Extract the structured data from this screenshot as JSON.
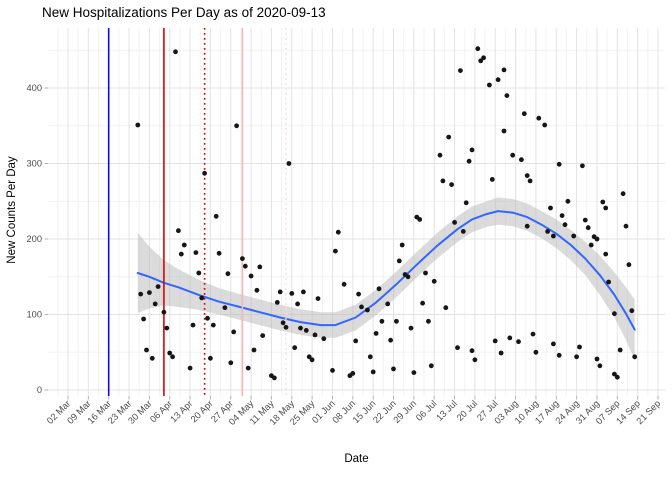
{
  "title": "New Hospitalizations Per Day as of 2020-09-13",
  "axes": {
    "x_label": "Date",
    "y_label": "New Counts Per Day",
    "x_ticks": [
      "02 Mar",
      "09 Mar",
      "16 Mar",
      "23 Mar",
      "30 Mar",
      "06 Apr",
      "13 Apr",
      "20 Apr",
      "27 Apr",
      "04 May",
      "11 May",
      "18 May",
      "25 May",
      "01 Jun",
      "08 Jun",
      "15 Jun",
      "22 Jun",
      "29 Jun",
      "06 Jul",
      "13 Jul",
      "20 Jul",
      "27 Jul",
      "03 Aug",
      "10 Aug",
      "17 Aug",
      "24 Aug",
      "31 Aug",
      "07 Sep",
      "14 Sep",
      "21 Sep"
    ],
    "y_ticks": [
      "0",
      "100",
      "200",
      "300",
      "400"
    ],
    "y_tick_values": [
      0,
      100,
      200,
      300,
      400
    ],
    "y_minor_values": [
      50,
      150,
      250,
      350,
      450
    ]
  },
  "colors": {
    "title": "#000000",
    "axis_text": "#4d4d4d",
    "grid_major": "#e3e3e3",
    "grid_minor": "#f2f2f2",
    "tick_mark": "#b3b3b3",
    "point": "#161616",
    "smooth_line": "#3366ff",
    "ribbon": "#b8b8b8",
    "vline_blue": "#0d0de0",
    "vline_red": "#e00000",
    "vline_pink": "#f2b9b9",
    "vline_pink_light": "#f8dcdc"
  },
  "chart_data": {
    "type": "scatter",
    "title": "New Hospitalizations Per Day as of 2020-09-13",
    "xlabel": "Date",
    "ylabel": "New Counts Per Day",
    "x_tick_start": "2020-03-02",
    "x_tick_interval_days": 7,
    "ylim": [
      -9,
      480
    ],
    "grid": true,
    "legend": false,
    "smoother": "loess with confidence ribbon",
    "points": [
      [
        "2020-03-26",
        351
      ],
      [
        "2020-03-27",
        127
      ],
      [
        "2020-03-28",
        94
      ],
      [
        "2020-03-29",
        53
      ],
      [
        "2020-03-30",
        129
      ],
      [
        "2020-03-31",
        42
      ],
      [
        "2020-04-01",
        114
      ],
      [
        "2020-04-02",
        137
      ],
      [
        "2020-04-04",
        103
      ],
      [
        "2020-04-05",
        82
      ],
      [
        "2020-04-06",
        49
      ],
      [
        "2020-04-07",
        44
      ],
      [
        "2020-04-08",
        448
      ],
      [
        "2020-04-09",
        211
      ],
      [
        "2020-04-10",
        180
      ],
      [
        "2020-04-11",
        192
      ],
      [
        "2020-04-13",
        29
      ],
      [
        "2020-04-14",
        86
      ],
      [
        "2020-04-15",
        182
      ],
      [
        "2020-04-16",
        155
      ],
      [
        "2020-04-17",
        122
      ],
      [
        "2020-04-18",
        287
      ],
      [
        "2020-04-19",
        95
      ],
      [
        "2020-04-20",
        42
      ],
      [
        "2020-04-21",
        86
      ],
      [
        "2020-04-22",
        230
      ],
      [
        "2020-04-23",
        181
      ],
      [
        "2020-04-25",
        109
      ],
      [
        "2020-04-26",
        154
      ],
      [
        "2020-04-27",
        36
      ],
      [
        "2020-04-28",
        77
      ],
      [
        "2020-04-29",
        350
      ],
      [
        "2020-05-01",
        174
      ],
      [
        "2020-05-02",
        164
      ],
      [
        "2020-05-03",
        29
      ],
      [
        "2020-05-04",
        151
      ],
      [
        "2020-05-05",
        53
      ],
      [
        "2020-05-06",
        132
      ],
      [
        "2020-05-07",
        163
      ],
      [
        "2020-05-08",
        72
      ],
      [
        "2020-05-11",
        19
      ],
      [
        "2020-05-12",
        16
      ],
      [
        "2020-05-13",
        116
      ],
      [
        "2020-05-14",
        130
      ],
      [
        "2020-05-15",
        89
      ],
      [
        "2020-05-16",
        83
      ],
      [
        "2020-05-17",
        300
      ],
      [
        "2020-05-18",
        128
      ],
      [
        "2020-05-19",
        56
      ],
      [
        "2020-05-20",
        114
      ],
      [
        "2020-05-21",
        82
      ],
      [
        "2020-05-22",
        130
      ],
      [
        "2020-05-23",
        79
      ],
      [
        "2020-05-24",
        44
      ],
      [
        "2020-05-25",
        40
      ],
      [
        "2020-05-26",
        73
      ],
      [
        "2020-05-27",
        121
      ],
      [
        "2020-05-29",
        68
      ],
      [
        "2020-06-01",
        26
      ],
      [
        "2020-06-02",
        184
      ],
      [
        "2020-06-03",
        209
      ],
      [
        "2020-06-05",
        140
      ],
      [
        "2020-06-07",
        19
      ],
      [
        "2020-06-08",
        22
      ],
      [
        "2020-06-09",
        65
      ],
      [
        "2020-06-10",
        127
      ],
      [
        "2020-06-11",
        110
      ],
      [
        "2020-06-13",
        106
      ],
      [
        "2020-06-14",
        44
      ],
      [
        "2020-06-15",
        24
      ],
      [
        "2020-06-16",
        75
      ],
      [
        "2020-06-17",
        134
      ],
      [
        "2020-06-18",
        91
      ],
      [
        "2020-06-20",
        114
      ],
      [
        "2020-06-21",
        66
      ],
      [
        "2020-06-22",
        28
      ],
      [
        "2020-06-23",
        91
      ],
      [
        "2020-06-24",
        171
      ],
      [
        "2020-06-25",
        192
      ],
      [
        "2020-06-26",
        153
      ],
      [
        "2020-06-27",
        150
      ],
      [
        "2020-06-28",
        82
      ],
      [
        "2020-06-29",
        23
      ],
      [
        "2020-06-30",
        229
      ],
      [
        "2020-07-01",
        226
      ],
      [
        "2020-07-02",
        115
      ],
      [
        "2020-07-03",
        155
      ],
      [
        "2020-07-04",
        91
      ],
      [
        "2020-07-05",
        32
      ],
      [
        "2020-07-06",
        144
      ],
      [
        "2020-07-08",
        311
      ],
      [
        "2020-07-09",
        277
      ],
      [
        "2020-07-10",
        109
      ],
      [
        "2020-07-11",
        335
      ],
      [
        "2020-07-12",
        272
      ],
      [
        "2020-07-13",
        222
      ],
      [
        "2020-07-14",
        56
      ],
      [
        "2020-07-15",
        423
      ],
      [
        "2020-07-16",
        210
      ],
      [
        "2020-07-17",
        248
      ],
      [
        "2020-07-18",
        303
      ],
      [
        "2020-07-19",
        318
      ],
      [
        "2020-07-19",
        52
      ],
      [
        "2020-07-20",
        40
      ],
      [
        "2020-07-21",
        452
      ],
      [
        "2020-07-22",
        436
      ],
      [
        "2020-07-23",
        440
      ],
      [
        "2020-07-25",
        404
      ],
      [
        "2020-07-26",
        279
      ],
      [
        "2020-07-27",
        65
      ],
      [
        "2020-07-28",
        411
      ],
      [
        "2020-07-29",
        49
      ],
      [
        "2020-07-30",
        424
      ],
      [
        "2020-07-30",
        343
      ],
      [
        "2020-07-31",
        390
      ],
      [
        "2020-08-01",
        69
      ],
      [
        "2020-08-02",
        311
      ],
      [
        "2020-08-04",
        64
      ],
      [
        "2020-08-05",
        305
      ],
      [
        "2020-08-06",
        366
      ],
      [
        "2020-08-07",
        284
      ],
      [
        "2020-08-07",
        217
      ],
      [
        "2020-08-08",
        277
      ],
      [
        "2020-08-09",
        74
      ],
      [
        "2020-08-10",
        50
      ],
      [
        "2020-08-11",
        360
      ],
      [
        "2020-08-13",
        351
      ],
      [
        "2020-08-14",
        210
      ],
      [
        "2020-08-15",
        241
      ],
      [
        "2020-08-16",
        204
      ],
      [
        "2020-08-16",
        61
      ],
      [
        "2020-08-18",
        299
      ],
      [
        "2020-08-18",
        46
      ],
      [
        "2020-08-19",
        231
      ],
      [
        "2020-08-20",
        219
      ],
      [
        "2020-08-21",
        250
      ],
      [
        "2020-08-23",
        204
      ],
      [
        "2020-08-24",
        44
      ],
      [
        "2020-08-25",
        57
      ],
      [
        "2020-08-26",
        297
      ],
      [
        "2020-08-27",
        225
      ],
      [
        "2020-08-28",
        215
      ],
      [
        "2020-08-29",
        192
      ],
      [
        "2020-08-30",
        203
      ],
      [
        "2020-08-31",
        200
      ],
      [
        "2020-08-31",
        41
      ],
      [
        "2020-09-01",
        32
      ],
      [
        "2020-09-02",
        249
      ],
      [
        "2020-09-03",
        241
      ],
      [
        "2020-09-03",
        180
      ],
      [
        "2020-09-04",
        143
      ],
      [
        "2020-09-06",
        101
      ],
      [
        "2020-09-06",
        21
      ],
      [
        "2020-09-07",
        17
      ],
      [
        "2020-09-08",
        53
      ],
      [
        "2020-09-09",
        260
      ],
      [
        "2020-09-10",
        217
      ],
      [
        "2020-09-11",
        166
      ],
      [
        "2020-09-12",
        105
      ],
      [
        "2020-09-13",
        44
      ]
    ],
    "smooth_line": [
      [
        "2020-03-26",
        155
      ],
      [
        "2020-03-30",
        150
      ],
      [
        "2020-04-04",
        142
      ],
      [
        "2020-04-09",
        136
      ],
      [
        "2020-04-16",
        126
      ],
      [
        "2020-04-23",
        117
      ],
      [
        "2020-04-30",
        110
      ],
      [
        "2020-05-07",
        103
      ],
      [
        "2020-05-14",
        96
      ],
      [
        "2020-05-21",
        90
      ],
      [
        "2020-05-28",
        86
      ],
      [
        "2020-06-02",
        86
      ],
      [
        "2020-06-09",
        96
      ],
      [
        "2020-06-16",
        116
      ],
      [
        "2020-06-23",
        140
      ],
      [
        "2020-06-30",
        166
      ],
      [
        "2020-07-07",
        191
      ],
      [
        "2020-07-14",
        213
      ],
      [
        "2020-07-19",
        226
      ],
      [
        "2020-07-24",
        233
      ],
      [
        "2020-07-28",
        237
      ],
      [
        "2020-08-02",
        235
      ],
      [
        "2020-08-07",
        229
      ],
      [
        "2020-08-12",
        219
      ],
      [
        "2020-08-17",
        207
      ],
      [
        "2020-08-22",
        192
      ],
      [
        "2020-08-27",
        174
      ],
      [
        "2020-09-01",
        152
      ],
      [
        "2020-09-06",
        126
      ],
      [
        "2020-09-10",
        101
      ],
      [
        "2020-09-13",
        80
      ]
    ],
    "ribbon": [
      [
        "2020-03-26",
        102,
        208
      ],
      [
        "2020-03-30",
        108,
        190
      ],
      [
        "2020-04-04",
        112,
        172
      ],
      [
        "2020-04-09",
        110,
        160
      ],
      [
        "2020-04-16",
        106,
        146
      ],
      [
        "2020-04-23",
        100,
        135
      ],
      [
        "2020-04-30",
        93,
        127
      ],
      [
        "2020-05-07",
        86,
        120
      ],
      [
        "2020-05-14",
        79,
        113
      ],
      [
        "2020-05-21",
        73,
        107
      ],
      [
        "2020-05-28",
        69,
        103
      ],
      [
        "2020-06-02",
        69,
        103
      ],
      [
        "2020-06-09",
        79,
        113
      ],
      [
        "2020-06-16",
        99,
        133
      ],
      [
        "2020-06-23",
        123,
        157
      ],
      [
        "2020-06-30",
        149,
        183
      ],
      [
        "2020-07-07",
        174,
        208
      ],
      [
        "2020-07-14",
        196,
        230
      ],
      [
        "2020-07-19",
        209,
        243
      ],
      [
        "2020-07-24",
        216,
        250
      ],
      [
        "2020-07-28",
        219,
        255
      ],
      [
        "2020-08-02",
        217,
        253
      ],
      [
        "2020-08-07",
        211,
        247
      ],
      [
        "2020-08-12",
        201,
        237
      ],
      [
        "2020-08-17",
        188,
        226
      ],
      [
        "2020-08-22",
        172,
        212
      ],
      [
        "2020-08-27",
        152,
        196
      ],
      [
        "2020-09-01",
        126,
        178
      ],
      [
        "2020-09-06",
        96,
        156
      ],
      [
        "2020-09-10",
        66,
        136
      ],
      [
        "2020-09-13",
        40,
        120
      ]
    ],
    "vlines": [
      {
        "date": "2020-03-16",
        "style": "solid",
        "color_key": "vline_blue"
      },
      {
        "date": "2020-04-04",
        "style": "solid",
        "color_key": "vline_red"
      },
      {
        "date": "2020-04-18",
        "style": "dotted",
        "color_key": "vline_red"
      },
      {
        "date": "2020-05-01",
        "style": "solid",
        "color_key": "vline_pink"
      },
      {
        "date": "2020-05-16",
        "style": "dotted",
        "color_key": "vline_pink_light"
      }
    ]
  }
}
